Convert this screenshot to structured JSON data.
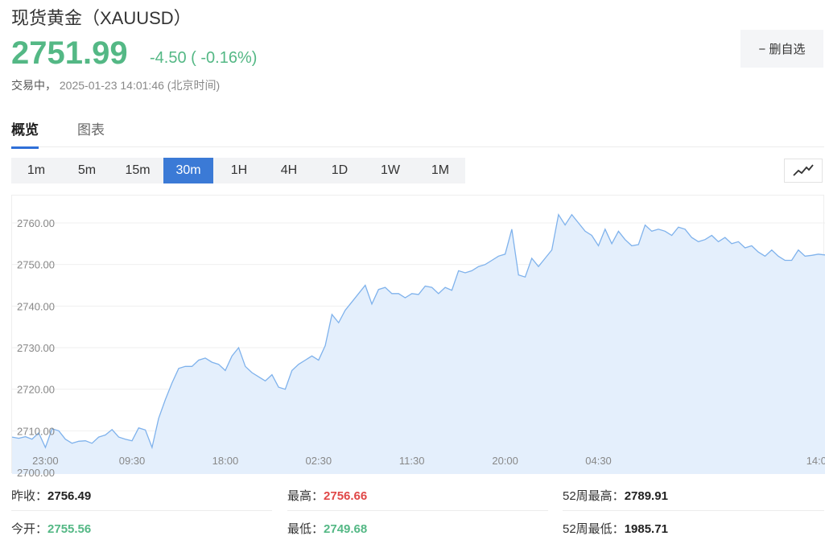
{
  "header": {
    "title": "现货黄金（XAUUSD）",
    "price": "2751.99",
    "change": "-4.50 ( -0.16%)",
    "status_label": "交易中，",
    "datetime": "2025-01-23 14:01:46",
    "timezone": "(北京时间)",
    "fav_button": "− 删自选"
  },
  "tabs": [
    {
      "label": "概览",
      "active": true
    },
    {
      "label": "图表",
      "active": false
    }
  ],
  "periods": [
    {
      "label": "1m",
      "active": false
    },
    {
      "label": "5m",
      "active": false
    },
    {
      "label": "15m",
      "active": false
    },
    {
      "label": "30m",
      "active": true
    },
    {
      "label": "1H",
      "active": false
    },
    {
      "label": "4H",
      "active": false
    },
    {
      "label": "1D",
      "active": false
    },
    {
      "label": "1W",
      "active": false
    },
    {
      "label": "1M",
      "active": false
    }
  ],
  "chart_type_icon": "line-chart-icon",
  "colors": {
    "accent": "#3b7ad6",
    "up": "#e04848",
    "down": "#54b885",
    "line": "#7fb2ec",
    "fill": "#e4effc"
  },
  "chart_data": {
    "type": "area",
    "ylim": [
      2700,
      2765
    ],
    "yticks": [
      "2760.00",
      "2750.00",
      "2740.00",
      "2730.00",
      "2720.00",
      "2710.00",
      "2700.00"
    ],
    "ytick_values": [
      2760,
      2750,
      2740,
      2730,
      2720,
      2710,
      2700
    ],
    "xticks": [
      "23:00",
      "09:30",
      "18:00",
      "02:30",
      "11:30",
      "20:00",
      "04:30",
      "14:0"
    ],
    "xtick_indices": [
      5,
      18,
      32,
      46,
      60,
      74,
      88,
      102
    ],
    "values": [
      2708.5,
      2708.2,
      2708.6,
      2708.0,
      2709.5,
      2706.0,
      2710.5,
      2710.0,
      2708.0,
      2707.0,
      2707.5,
      2707.6,
      2707.0,
      2708.5,
      2709.0,
      2710.3,
      2708.5,
      2708.0,
      2707.6,
      2710.7,
      2710.2,
      2706.0,
      2713.0,
      2717.5,
      2721.5,
      2725.0,
      2725.5,
      2725.5,
      2727.0,
      2727.5,
      2726.5,
      2726.0,
      2724.5,
      2728.0,
      2730.0,
      2725.5,
      2724.0,
      2723.0,
      2722.0,
      2723.5,
      2720.5,
      2720.0,
      2724.5,
      2726.0,
      2727.0,
      2728.0,
      2727.0,
      2730.5,
      2738.0,
      2736.0,
      2739.0,
      2741.0,
      2743.0,
      2745.0,
      2740.5,
      2744.0,
      2744.5,
      2743.0,
      2743.0,
      2742.0,
      2743.0,
      2742.8,
      2744.8,
      2744.5,
      2743.0,
      2744.5,
      2743.8,
      2748.5,
      2748.0,
      2748.5,
      2749.5,
      2750.0,
      2751.0,
      2752.0,
      2752.5,
      2758.5,
      2747.5,
      2747.0,
      2751.5,
      2749.5,
      2751.5,
      2753.5,
      2762.0,
      2759.5,
      2762.0,
      2760.0,
      2758.0,
      2757.0,
      2754.5,
      2758.5,
      2755.0,
      2758.0,
      2756.0,
      2754.5,
      2754.8,
      2759.5,
      2758.0,
      2758.5,
      2758.0,
      2757.0,
      2759.0,
      2758.5,
      2756.5,
      2755.5,
      2756.0,
      2757.0,
      2755.5,
      2756.5,
      2755.0,
      2755.5,
      2754.0,
      2754.5,
      2753.0,
      2752.0,
      2753.5,
      2752.0,
      2751.0,
      2751.0,
      2753.5,
      2752.0,
      2752.2,
      2752.5,
      2752.3
    ]
  },
  "stats": [
    {
      "label": "昨收：",
      "value": "2756.49",
      "tone": "neutral"
    },
    {
      "label": "最高：",
      "value": "2756.66",
      "tone": "up"
    },
    {
      "label": "52周最高：",
      "value": "2789.91",
      "tone": "neutral"
    },
    {
      "label": "今开：",
      "value": "2755.56",
      "tone": "down"
    },
    {
      "label": "最低：",
      "value": "2749.68",
      "tone": "down"
    },
    {
      "label": "52周最低：",
      "value": "1985.71",
      "tone": "neutral"
    }
  ]
}
